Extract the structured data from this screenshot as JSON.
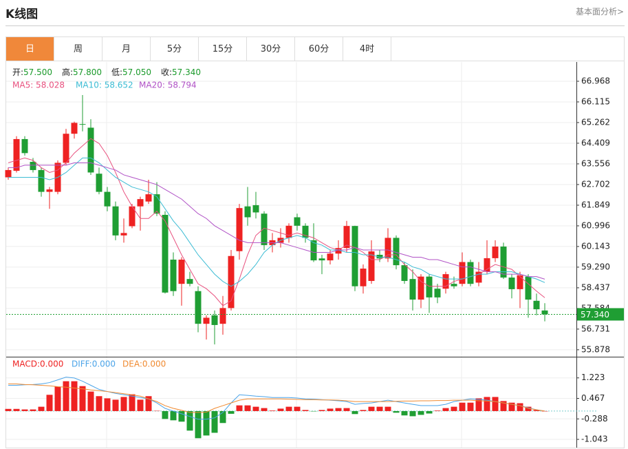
{
  "header": {
    "title": "K线图",
    "link": "基本面分析>"
  },
  "tabs": [
    "日",
    "周",
    "月",
    "5分",
    "15分",
    "30分",
    "60分",
    "4时"
  ],
  "active_tab": 0,
  "chart_data": [
    {
      "type": "candlestick",
      "quote": [
        {
          "label": "开:",
          "value": "57.500"
        },
        {
          "label": "高:",
          "value": "57.800"
        },
        {
          "label": "低:",
          "value": "57.050"
        },
        {
          "label": "收:",
          "value": "57.340"
        }
      ],
      "quote_color": "#1a9a2a",
      "up_color": "#ee2222",
      "down_color": "#1f9e33",
      "open": [
        63.0,
        63.27,
        64.58,
        63.64,
        63.3,
        62.4,
        62.4,
        63.6,
        64.8,
        65.2,
        65.05,
        63.15,
        62.4,
        61.8,
        60.6,
        60.98,
        61.8,
        62.0,
        62.3,
        61.45,
        59.6,
        58.6,
        58.8,
        58.3,
        56.95,
        57.3,
        56.95,
        57.6,
        59.95,
        61.8,
        61.85,
        61.5,
        60.2,
        60.3,
        60.5,
        61.35,
        61.0,
        60.4,
        59.65,
        59.57,
        59.85,
        60.08,
        60.99,
        58.5,
        58.72,
        59.8,
        59.65,
        60.5,
        59.37,
        58.8,
        57.95,
        58.9,
        58.4,
        58.4,
        58.6,
        58.6,
        59.5,
        58.65,
        59.1,
        59.66,
        60.14,
        58.86,
        58.38,
        58.9,
        57.9,
        57.5
      ],
      "high": [
        63.4,
        64.7,
        64.7,
        63.8,
        63.4,
        62.6,
        63.7,
        65.0,
        65.3,
        66.4,
        65.4,
        63.4,
        62.6,
        62.0,
        61.3,
        61.9,
        62.2,
        62.9,
        62.8,
        61.6,
        59.9,
        59.7,
        59.1,
        58.5,
        57.3,
        57.5,
        58.1,
        60.0,
        61.9,
        62.6,
        62.4,
        61.6,
        60.7,
        60.9,
        61.1,
        61.5,
        61.1,
        61.1,
        59.8,
        60.0,
        60.4,
        61.2,
        61.0,
        59.4,
        60.4,
        60.0,
        60.9,
        60.6,
        59.5,
        59.2,
        59.0,
        59.0,
        58.6,
        59.1,
        58.9,
        59.9,
        59.6,
        59.5,
        60.4,
        60.4,
        60.3,
        59.0,
        59.1,
        59.0,
        58.2,
        57.8
      ],
      "low": [
        62.9,
        63.2,
        63.9,
        63.2,
        62.2,
        61.7,
        62.3,
        63.5,
        64.6,
        64.9,
        63.1,
        62.3,
        61.6,
        60.4,
        60.3,
        60.9,
        60.8,
        61.9,
        61.4,
        58.2,
        58.1,
        57.7,
        58.5,
        56.6,
        56.3,
        56.1,
        56.5,
        57.5,
        59.6,
        61.0,
        61.3,
        60.0,
        59.9,
        60.1,
        60.3,
        60.8,
        60.3,
        59.5,
        59.0,
        59.4,
        59.6,
        59.9,
        58.3,
        58.2,
        58.6,
        59.5,
        59.5,
        59.2,
        58.6,
        57.5,
        57.6,
        57.4,
        57.8,
        58.2,
        58.4,
        58.5,
        58.5,
        58.5,
        59.0,
        59.5,
        58.8,
        58.0,
        57.6,
        57.2,
        57.3,
        57.05
      ],
      "close": [
        63.3,
        64.58,
        64.0,
        63.3,
        62.4,
        62.5,
        63.6,
        64.8,
        65.25,
        65.18,
        63.2,
        62.4,
        61.8,
        60.6,
        60.7,
        61.8,
        62.1,
        62.3,
        61.5,
        58.24,
        58.3,
        59.6,
        58.6,
        56.95,
        57.2,
        56.9,
        57.6,
        59.75,
        61.73,
        61.35,
        61.55,
        60.2,
        60.4,
        60.5,
        61.0,
        61.0,
        60.5,
        59.57,
        59.57,
        59.85,
        60.08,
        60.99,
        58.5,
        59.23,
        59.94,
        59.65,
        60.5,
        59.37,
        58.72,
        57.95,
        58.9,
        58.04,
        58.04,
        59.0,
        58.5,
        59.5,
        58.6,
        59.1,
        59.66,
        60.14,
        58.86,
        58.38,
        58.95,
        57.95,
        57.55,
        57.34
      ],
      "series": [
        {
          "label": "MA5: 58.028",
          "color": "#e8507e",
          "values": [
            63.6,
            63.7,
            63.8,
            63.7,
            63.4,
            63.2,
            63.3,
            63.6,
            64.0,
            64.3,
            64.6,
            64.4,
            63.9,
            63.2,
            62.4,
            61.8,
            61.3,
            61.3,
            61.6,
            61.2,
            60.5,
            59.8,
            59.2,
            58.6,
            58.4,
            58.1,
            57.7,
            57.9,
            58.8,
            59.8,
            60.6,
            60.9,
            60.8,
            60.7,
            60.6,
            60.7,
            60.6,
            60.5,
            60.3,
            60.1,
            60.0,
            60.2,
            60.1,
            59.9,
            59.6,
            59.6,
            59.8,
            59.8,
            59.4,
            59.1,
            58.7,
            58.5,
            58.5,
            58.5,
            58.7,
            58.8,
            58.9,
            59.0,
            59.2,
            59.4,
            59.3,
            59.2,
            58.9,
            58.6,
            58.3,
            58.028
          ]
        },
        {
          "label": "MA10: 58.652",
          "color": "#3cbcd4",
          "values": [
            63.0,
            63.0,
            63.0,
            63.0,
            63.0,
            62.9,
            63.0,
            63.2,
            63.5,
            63.8,
            63.8,
            63.6,
            63.3,
            63.0,
            62.8,
            62.6,
            62.5,
            62.4,
            62.2,
            61.7,
            61.2,
            60.8,
            60.3,
            59.8,
            59.4,
            59.0,
            58.7,
            58.5,
            58.7,
            59.0,
            59.4,
            59.9,
            60.2,
            60.4,
            60.5,
            60.6,
            60.5,
            60.3,
            60.2,
            60.0,
            60.0,
            59.9,
            59.9,
            59.8,
            59.8,
            59.7,
            59.7,
            59.6,
            59.5,
            59.3,
            59.2,
            59.0,
            58.9,
            58.8,
            58.8,
            58.8,
            58.9,
            59.0,
            59.0,
            59.1,
            59.1,
            59.1,
            59.0,
            58.9,
            58.8,
            58.652
          ]
        },
        {
          "label": "MA20: 58.794",
          "color": "#b052c6",
          "values": [
            63.4,
            63.4,
            63.5,
            63.5,
            63.5,
            63.5,
            63.5,
            63.5,
            63.6,
            63.6,
            63.6,
            63.5,
            63.4,
            63.3,
            63.1,
            63.0,
            62.9,
            62.8,
            62.7,
            62.5,
            62.3,
            62.1,
            61.8,
            61.5,
            61.3,
            61.0,
            60.8,
            60.6,
            60.4,
            60.3,
            60.3,
            60.3,
            60.3,
            60.3,
            60.2,
            60.1,
            60.0,
            59.9,
            59.9,
            59.9,
            60.0,
            60.0,
            60.1,
            60.0,
            60.0,
            60.0,
            60.0,
            59.9,
            59.8,
            59.7,
            59.7,
            59.6,
            59.6,
            59.5,
            59.4,
            59.3,
            59.3,
            59.2,
            59.1,
            59.1,
            59.0,
            59.0,
            59.0,
            58.9,
            58.9,
            58.794
          ]
        }
      ],
      "ylim": [
        55.59,
        67.764
      ],
      "yticks": [
        66.968,
        66.115,
        65.262,
        64.409,
        63.556,
        62.702,
        61.849,
        60.996,
        60.143,
        {
          "value": 59.29,
          "label": "59.290"
        },
        58.437,
        57.584,
        56.731,
        55.878
      ],
      "grid": true
    },
    {
      "type": "macd",
      "legend": [
        {
          "label": "MACD:0.000",
          "color": "#ee2222"
        },
        {
          "label": "DIFF:0.000",
          "color": "#4aa3e8"
        },
        {
          "label": "DEA:0.000",
          "color": "#f08a30"
        }
      ],
      "up_color": "#ee2222",
      "down_color": "#1f9e33",
      "values": [
        0.08,
        0.08,
        0.06,
        0.06,
        0.16,
        0.6,
        0.9,
        1.1,
        1.1,
        0.92,
        0.72,
        0.55,
        0.47,
        0.42,
        0.52,
        0.62,
        0.42,
        0.55,
        0.01,
        -0.29,
        -0.34,
        -0.39,
        -0.72,
        -1.0,
        -0.9,
        -0.8,
        -0.44,
        -0.1,
        0.21,
        0.21,
        0.16,
        0.11,
        0.02,
        0.09,
        0.16,
        0.16,
        0.04,
        -0.01,
        0.04,
        0.09,
        0.11,
        0.11,
        -0.11,
        0.04,
        0.16,
        0.16,
        0.16,
        -0.06,
        -0.16,
        -0.19,
        -0.14,
        -0.09,
        0.02,
        0.11,
        0.16,
        0.31,
        0.31,
        0.47,
        0.52,
        0.52,
        0.37,
        0.31,
        0.29,
        0.16,
        0.04,
        0.0
      ],
      "series": [
        {
          "color": "#4aa3e8",
          "values": [
            0.95,
            0.95,
            0.97,
            0.98,
            1.0,
            1.05,
            1.15,
            1.25,
            1.22,
            1.1,
            0.95,
            0.8,
            0.72,
            0.65,
            0.6,
            0.55,
            0.5,
            0.45,
            0.3,
            0.1,
            0.0,
            -0.1,
            -0.2,
            -0.3,
            -0.3,
            -0.25,
            -0.05,
            0.3,
            0.6,
            0.58,
            0.55,
            0.53,
            0.5,
            0.5,
            0.5,
            0.48,
            0.45,
            0.44,
            0.42,
            0.4,
            0.38,
            0.35,
            0.25,
            0.28,
            0.3,
            0.35,
            0.4,
            0.35,
            0.3,
            0.25,
            0.2,
            0.2,
            0.2,
            0.25,
            0.35,
            0.4,
            0.45,
            0.43,
            0.4,
            0.35,
            0.3,
            0.25,
            0.2,
            0.12,
            0.05,
            0.0
          ]
        },
        {
          "color": "#f08a30",
          "values": [
            1.0,
            1.0,
            0.98,
            0.97,
            0.95,
            0.93,
            0.9,
            0.88,
            0.85,
            0.82,
            0.78,
            0.75,
            0.72,
            0.68,
            0.64,
            0.6,
            0.55,
            0.45,
            0.35,
            0.2,
            0.1,
            0.03,
            -0.05,
            -0.05,
            -0.04,
            0.1,
            0.2,
            0.3,
            0.4,
            0.45,
            0.45,
            0.45,
            0.45,
            0.45,
            0.44,
            0.43,
            0.42,
            0.42,
            0.41,
            0.41,
            0.4,
            0.38,
            0.35,
            0.35,
            0.35,
            0.35,
            0.35,
            0.36,
            0.37,
            0.37,
            0.38,
            0.38,
            0.39,
            0.39,
            0.4,
            0.4,
            0.4,
            0.38,
            0.37,
            0.35,
            0.3,
            0.25,
            0.2,
            0.1,
            0.05,
            0.0
          ]
        }
      ],
      "ylim": [
        -1.347,
        1.978
      ],
      "yticks": [
        1.223,
        0.467,
        -0.288,
        -1.043
      ],
      "grid": true
    }
  ]
}
